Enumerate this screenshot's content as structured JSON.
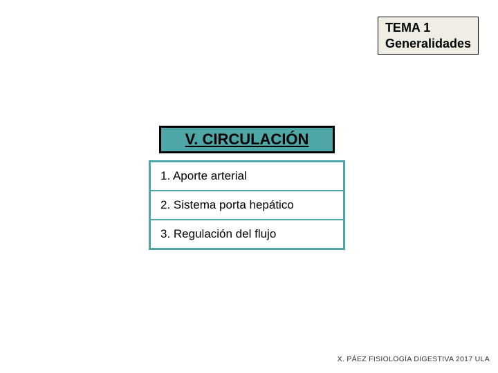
{
  "badge": {
    "line1": "TEMA 1",
    "line2": "Generalidades"
  },
  "heading": "V. CIRCULACIÓN",
  "items": [
    "1. Aporte arterial",
    "2. Sistema porta hepático",
    "3. Regulación del flujo"
  ],
  "footer": "X. PÁEZ   FISIOLOGÍA DIGESTIVA 2017 ULA",
  "colors": {
    "heading_bg": "#4ea6a6",
    "border_teal": "#4ea6a6",
    "badge_bg": "#f0ede4"
  }
}
